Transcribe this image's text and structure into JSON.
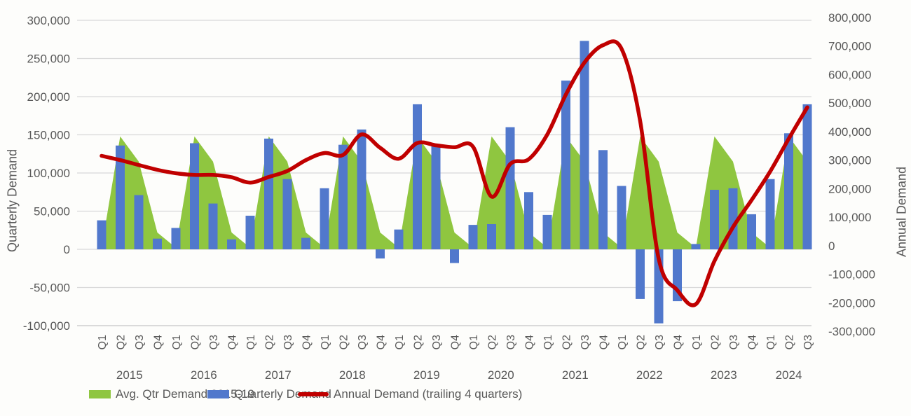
{
  "colors": {
    "area_green": "#8FC640",
    "bar_blue": "#5178CC",
    "line_red": "#C00000",
    "grid": "#D9D9D9",
    "grid_bottom": "#C6C6C6",
    "text_gray": "#595959"
  },
  "left_axis": {
    "title": "Quarterly Demand",
    "min": -100000,
    "max": 300000,
    "tick_values": [
      300000,
      250000,
      200000,
      150000,
      100000,
      50000,
      0,
      -50000,
      -100000
    ],
    "tick_labels": [
      "300,000",
      "250,000",
      "200,000",
      "150,000",
      "100,000",
      "50,000",
      "0",
      "-50,000",
      "-100,000"
    ]
  },
  "right_axis": {
    "title": "Annual Demand",
    "min": -300000,
    "max": 800000,
    "tick_values": [
      800000,
      700000,
      600000,
      500000,
      400000,
      300000,
      200000,
      100000,
      0,
      -100000,
      -200000,
      -300000
    ],
    "tick_labels": [
      "800,000",
      "700,000",
      "600,000",
      "500,000",
      "400,000",
      "300,000",
      "200,000",
      "100,000",
      "0",
      "-100,000",
      "-200,000",
      "-300,000"
    ]
  },
  "legend": {
    "avg_label": "Avg. Qtr Demand 2015-19",
    "quarterly_label": "Quarterly Demand",
    "annual_label": "Annual Demand (trailing 4 quarters)"
  },
  "chart_data": {
    "type": "combo-bar-area-line",
    "quarter_labels": [
      "Q1",
      "Q2",
      "Q3",
      "Q4",
      "Q1",
      "Q2",
      "Q3",
      "Q4",
      "Q1",
      "Q2",
      "Q3",
      "Q4",
      "Q1",
      "Q2",
      "Q3",
      "Q4",
      "Q1",
      "Q2",
      "Q3",
      "Q4",
      "Q1",
      "Q2",
      "Q3",
      "Q4",
      "Q1",
      "Q2",
      "Q3",
      "Q4",
      "Q1",
      "Q2",
      "Q3",
      "Q4",
      "Q1",
      "Q2",
      "Q3",
      "Q4",
      "Q1",
      "Q2",
      "Q3"
    ],
    "year_groups": [
      {
        "label": "2015",
        "count": 4
      },
      {
        "label": "2016",
        "count": 4
      },
      {
        "label": "2017",
        "count": 4
      },
      {
        "label": "2018",
        "count": 4
      },
      {
        "label": "2019",
        "count": 4
      },
      {
        "label": "2020",
        "count": 4
      },
      {
        "label": "2021",
        "count": 4
      },
      {
        "label": "2022",
        "count": 4
      },
      {
        "label": "2023",
        "count": 4
      },
      {
        "label": "2024",
        "count": 3
      }
    ],
    "series": [
      {
        "name": "Avg. Qtr Demand 2015-19",
        "type": "area",
        "axis": "left",
        "values": [
          2000,
          148000,
          115000,
          22000,
          2000,
          148000,
          115000,
          22000,
          2000,
          148000,
          115000,
          22000,
          2000,
          148000,
          115000,
          22000,
          2000,
          148000,
          115000,
          22000,
          2000,
          148000,
          115000,
          22000,
          2000,
          148000,
          115000,
          22000,
          2000,
          148000,
          115000,
          22000,
          2000,
          148000,
          115000,
          22000,
          2000,
          148000,
          115000
        ]
      },
      {
        "name": "Quarterly Demand",
        "type": "bar",
        "axis": "left",
        "values": [
          38000,
          136000,
          71000,
          14000,
          28000,
          139000,
          60000,
          13000,
          44000,
          145000,
          92000,
          15000,
          80000,
          137000,
          157000,
          -12000,
          26000,
          190000,
          138000,
          -18000,
          32000,
          33000,
          160000,
          75000,
          45000,
          221000,
          273000,
          130000,
          83000,
          -65000,
          -97000,
          -68000,
          7000,
          78000,
          80000,
          46000,
          92000,
          152000,
          190000
        ]
      },
      {
        "name": "Annual Demand (trailing 4 quarters)",
        "type": "line",
        "axis": "right",
        "values": [
          315000,
          300000,
          283000,
          266000,
          254000,
          248000,
          248000,
          240000,
          221000,
          241000,
          262000,
          300000,
          325000,
          318000,
          390000,
          343000,
          305000,
          360000,
          352000,
          345000,
          347000,
          172000,
          286000,
          303000,
          390000,
          530000,
          642000,
          703000,
          690000,
          437000,
          -46000,
          -156000,
          -205000,
          -54000,
          65000,
          160000,
          260000,
          375000,
          485000
        ]
      }
    ],
    "grid": true,
    "legend_position": "bottom"
  }
}
